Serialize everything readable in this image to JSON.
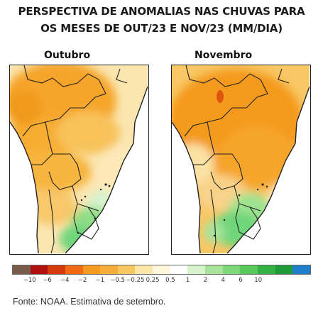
{
  "title_line1": "PERSPECTIVA DE ANOMALIAS NAS CHUVAS PARA",
  "title_line2": "OS MESES DE OUT/23 E NOV/23 (MM/DIA)",
  "maps": [
    {
      "label": "Outubro"
    },
    {
      "label": "Novembro"
    }
  ],
  "legend": {
    "colors": [
      "#7a5a4a",
      "#b01010",
      "#d63a0c",
      "#ef6a12",
      "#f59a1e",
      "#f5ae3a",
      "#f8c860",
      "#fde7a8",
      "#fff7dd",
      "#ffffff",
      "#d8f2cc",
      "#a7e39a",
      "#7ed87a",
      "#58c85a",
      "#35b043",
      "#1f9a36",
      "#1d7fce"
    ],
    "ticks": [
      "−10",
      "−6",
      "−4",
      "−2",
      "−1",
      "−0.5",
      "−0.25",
      "0.25",
      "0.5",
      "1",
      "2",
      "4",
      "6",
      "10"
    ]
  },
  "source": "Fonte: NOAA. Estimativa de setembro.",
  "colors": {
    "dry": "#f5a623",
    "wet": "#6fd67a"
  }
}
